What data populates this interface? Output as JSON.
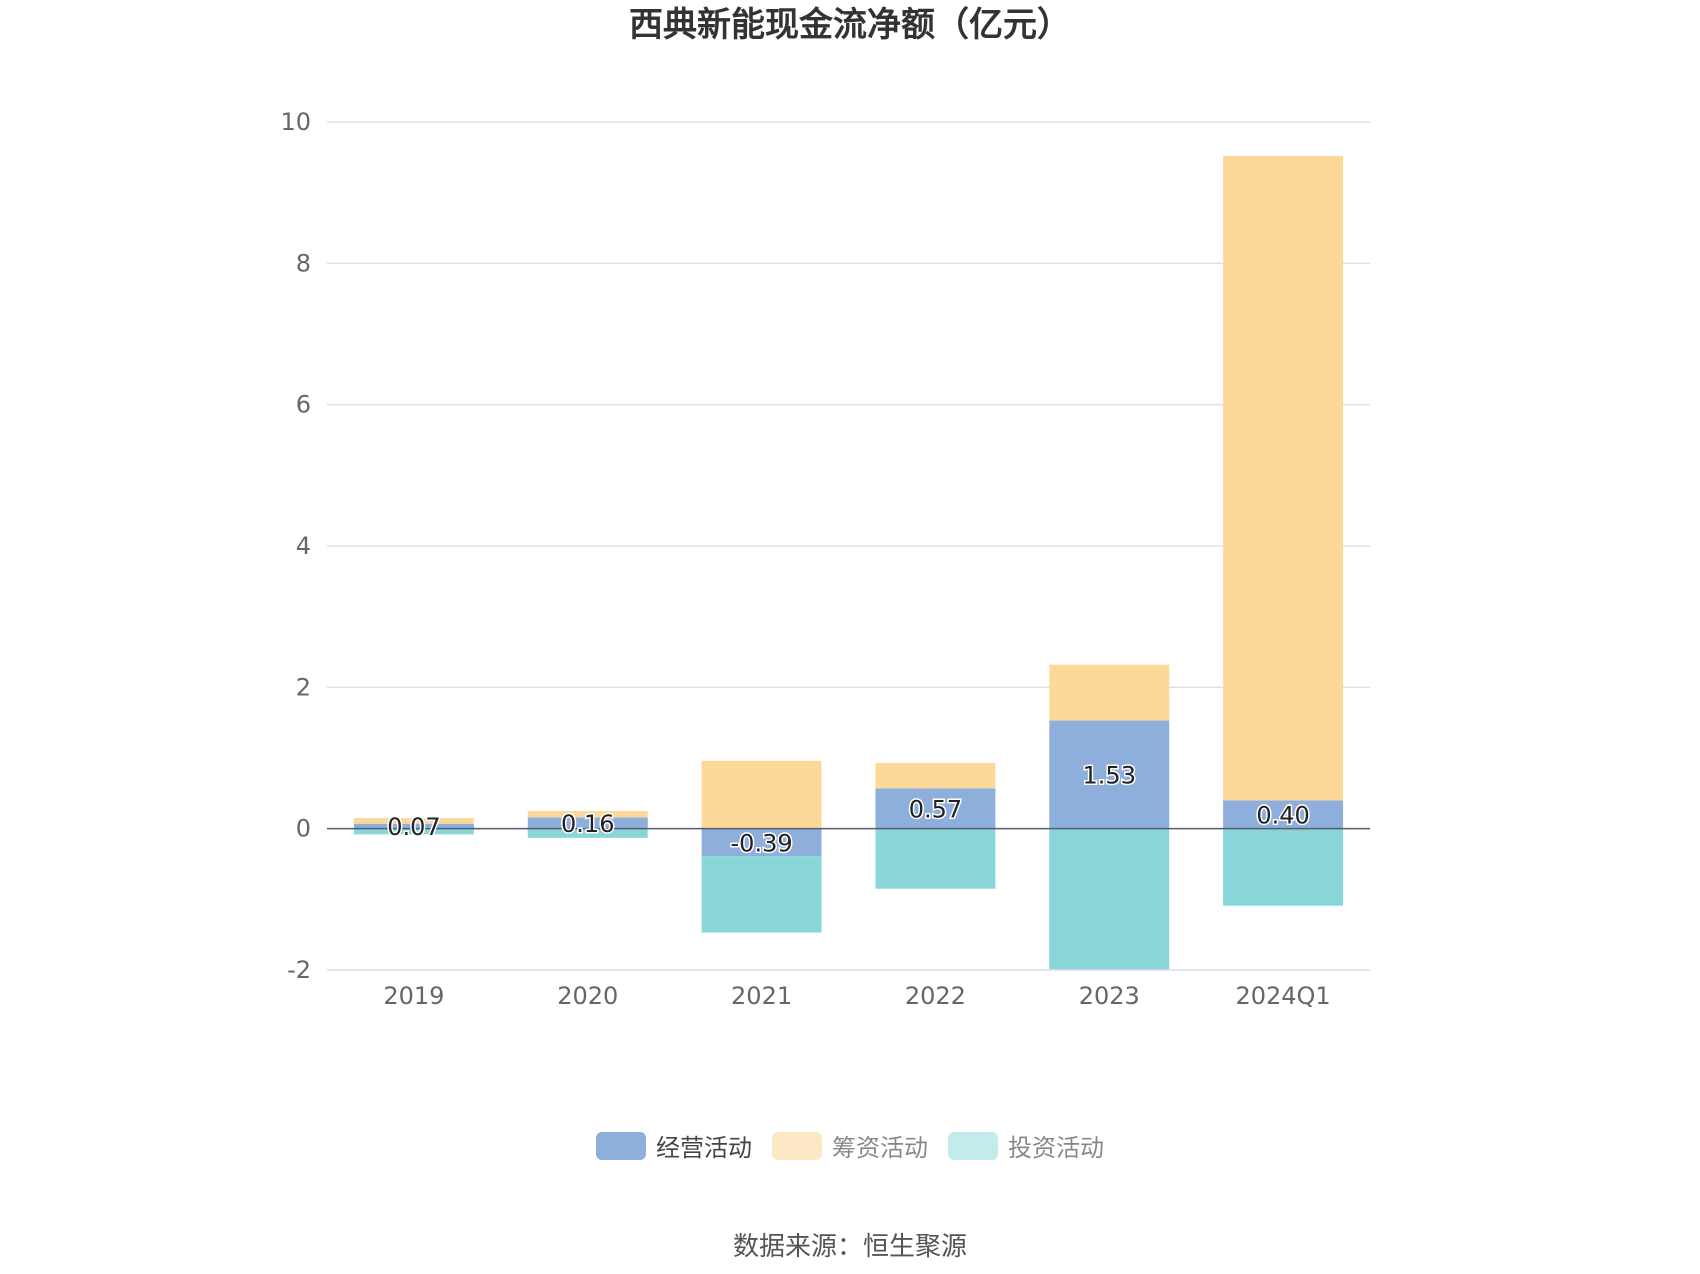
{
  "chart_data": {
    "type": "bar",
    "stacked": true,
    "title": "西典新能现金流净额（亿元）",
    "categories": [
      "2019",
      "2020",
      "2021",
      "2022",
      "2023",
      "2024Q1"
    ],
    "series": [
      {
        "name": "经营活动",
        "color": "#8eaedb",
        "values": [
          0.07,
          0.16,
          -0.39,
          0.57,
          1.53,
          0.4
        ],
        "labels": [
          "0.07",
          "0.16",
          "-0.39",
          "0.57",
          "1.53",
          "0.40"
        ]
      },
      {
        "name": "筹资活动",
        "color": "#fdd999",
        "values": [
          0.08,
          0.09,
          0.96,
          0.36,
          0.79,
          9.12
        ]
      },
      {
        "name": "投资活动",
        "color": "#88d6d8",
        "values": [
          -0.08,
          -0.13,
          -1.08,
          -0.85,
          -1.99,
          -1.09
        ]
      }
    ],
    "legend_colors": [
      "#8eaedb",
      "#fde8c6",
      "#c4ebec"
    ],
    "yticks": [
      -2,
      0,
      2,
      4,
      6,
      8,
      10
    ],
    "ylim": [
      -2,
      10
    ],
    "grid": true,
    "legend_position": "bottom"
  },
  "source": "数据来源：恒生聚源"
}
